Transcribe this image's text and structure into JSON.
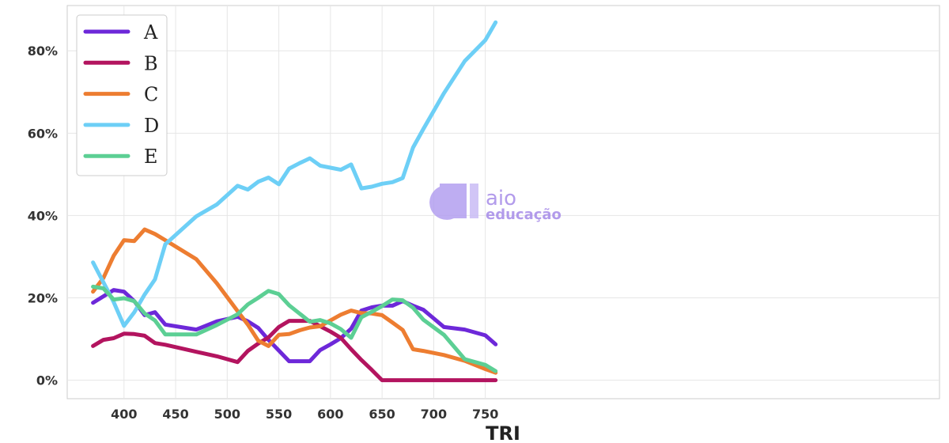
{
  "chart_data": {
    "type": "line",
    "xlabel": "TRI",
    "ylabel": "",
    "xlim": [
      345,
      1190
    ],
    "ylim": [
      -4.5,
      91
    ],
    "x_ticks": [
      400,
      450,
      500,
      550,
      600,
      650,
      700,
      750
    ],
    "y_ticks": [
      0,
      20,
      40,
      60,
      80
    ],
    "y_tick_format": "percent",
    "grid": true,
    "legend_position": "top-left",
    "series": [
      {
        "name": "A",
        "color": "#6d28d9",
        "points": [
          [
            370,
            18.8
          ],
          [
            390,
            21.9
          ],
          [
            400,
            21.5
          ],
          [
            410,
            19.2
          ],
          [
            420,
            15.8
          ],
          [
            430,
            16.5
          ],
          [
            440,
            13.5
          ],
          [
            470,
            12.3
          ],
          [
            490,
            14.3
          ],
          [
            510,
            15.4
          ],
          [
            520,
            14.3
          ],
          [
            530,
            12.7
          ],
          [
            540,
            9.8
          ],
          [
            550,
            7.2
          ],
          [
            560,
            4.6
          ],
          [
            570,
            4.6
          ],
          [
            580,
            4.6
          ],
          [
            590,
            7.3
          ],
          [
            600,
            8.7
          ],
          [
            610,
            10.2
          ],
          [
            620,
            12.5
          ],
          [
            630,
            16.9
          ],
          [
            640,
            17.7
          ],
          [
            650,
            18.1
          ],
          [
            660,
            18.1
          ],
          [
            670,
            19.2
          ],
          [
            680,
            18.1
          ],
          [
            690,
            17.1
          ],
          [
            700,
            15.0
          ],
          [
            710,
            12.9
          ],
          [
            730,
            12.3
          ],
          [
            750,
            10.9
          ],
          [
            760,
            8.7
          ]
        ]
      },
      {
        "name": "B",
        "color": "#b3145f",
        "points": [
          [
            370,
            8.3
          ],
          [
            380,
            9.8
          ],
          [
            390,
            10.2
          ],
          [
            400,
            11.3
          ],
          [
            410,
            11.2
          ],
          [
            420,
            10.8
          ],
          [
            430,
            9.0
          ],
          [
            440,
            8.6
          ],
          [
            470,
            6.9
          ],
          [
            490,
            5.8
          ],
          [
            510,
            4.4
          ],
          [
            520,
            7.1
          ],
          [
            530,
            8.9
          ],
          [
            540,
            10.4
          ],
          [
            550,
            12.9
          ],
          [
            560,
            14.4
          ],
          [
            570,
            14.4
          ],
          [
            580,
            14.4
          ],
          [
            590,
            13.1
          ],
          [
            600,
            11.8
          ],
          [
            610,
            10.3
          ],
          [
            620,
            7.5
          ],
          [
            630,
            4.9
          ],
          [
            640,
            2.5
          ],
          [
            650,
            0
          ],
          [
            700,
            0
          ],
          [
            730,
            0
          ],
          [
            760,
            0
          ]
        ]
      },
      {
        "name": "C",
        "color": "#ed7d31",
        "points": [
          [
            370,
            21.5
          ],
          [
            380,
            24.8
          ],
          [
            390,
            30.2
          ],
          [
            400,
            34.0
          ],
          [
            410,
            33.8
          ],
          [
            420,
            36.6
          ],
          [
            430,
            35.5
          ],
          [
            440,
            34.0
          ],
          [
            470,
            29.4
          ],
          [
            490,
            23.5
          ],
          [
            510,
            16.8
          ],
          [
            520,
            13.5
          ],
          [
            530,
            9.6
          ],
          [
            540,
            8.3
          ],
          [
            550,
            11.0
          ],
          [
            560,
            11.2
          ],
          [
            570,
            12.1
          ],
          [
            580,
            12.8
          ],
          [
            590,
            13.1
          ],
          [
            600,
            14.5
          ],
          [
            610,
            15.9
          ],
          [
            620,
            16.9
          ],
          [
            630,
            16.3
          ],
          [
            640,
            16.2
          ],
          [
            650,
            15.8
          ],
          [
            660,
            14.0
          ],
          [
            670,
            12.2
          ],
          [
            680,
            7.5
          ],
          [
            690,
            7.1
          ],
          [
            710,
            6.1
          ],
          [
            730,
            4.7
          ],
          [
            750,
            2.7
          ],
          [
            760,
            1.8
          ]
        ]
      },
      {
        "name": "D",
        "color": "#6dcff6",
        "points": [
          [
            370,
            28.6
          ],
          [
            390,
            19.0
          ],
          [
            400,
            13.2
          ],
          [
            410,
            16.5
          ],
          [
            420,
            20.8
          ],
          [
            430,
            24.5
          ],
          [
            440,
            33.0
          ],
          [
            470,
            39.8
          ],
          [
            490,
            42.7
          ],
          [
            510,
            47.2
          ],
          [
            520,
            46.3
          ],
          [
            530,
            48.2
          ],
          [
            540,
            49.2
          ],
          [
            550,
            47.6
          ],
          [
            560,
            51.4
          ],
          [
            570,
            52.7
          ],
          [
            580,
            53.9
          ],
          [
            590,
            52.1
          ],
          [
            600,
            51.6
          ],
          [
            610,
            51.1
          ],
          [
            620,
            52.4
          ],
          [
            630,
            46.6
          ],
          [
            640,
            47.0
          ],
          [
            650,
            47.7
          ],
          [
            660,
            48.1
          ],
          [
            670,
            49.1
          ],
          [
            680,
            56.5
          ],
          [
            690,
            61.0
          ],
          [
            710,
            69.7
          ],
          [
            730,
            77.5
          ],
          [
            750,
            82.6
          ],
          [
            760,
            86.9
          ]
        ]
      },
      {
        "name": "E",
        "color": "#5ccf94",
        "points": [
          [
            370,
            22.7
          ],
          [
            380,
            22.3
          ],
          [
            390,
            19.6
          ],
          [
            400,
            19.9
          ],
          [
            410,
            19.2
          ],
          [
            420,
            16.2
          ],
          [
            430,
            14.5
          ],
          [
            440,
            11.1
          ],
          [
            470,
            11.1
          ],
          [
            490,
            13.4
          ],
          [
            510,
            16.0
          ],
          [
            520,
            18.4
          ],
          [
            530,
            20.0
          ],
          [
            540,
            21.7
          ],
          [
            550,
            20.9
          ],
          [
            560,
            18.2
          ],
          [
            570,
            16.2
          ],
          [
            580,
            14.2
          ],
          [
            590,
            14.6
          ],
          [
            600,
            13.8
          ],
          [
            610,
            12.4
          ],
          [
            620,
            10.3
          ],
          [
            630,
            15.3
          ],
          [
            640,
            16.6
          ],
          [
            650,
            18.0
          ],
          [
            660,
            19.6
          ],
          [
            670,
            19.4
          ],
          [
            680,
            17.6
          ],
          [
            690,
            14.7
          ],
          [
            710,
            11.0
          ],
          [
            730,
            5.1
          ],
          [
            750,
            3.7
          ],
          [
            760,
            2.2
          ]
        ]
      }
    ]
  },
  "watermark": {
    "name": "aio",
    "tagline": "educação"
  }
}
